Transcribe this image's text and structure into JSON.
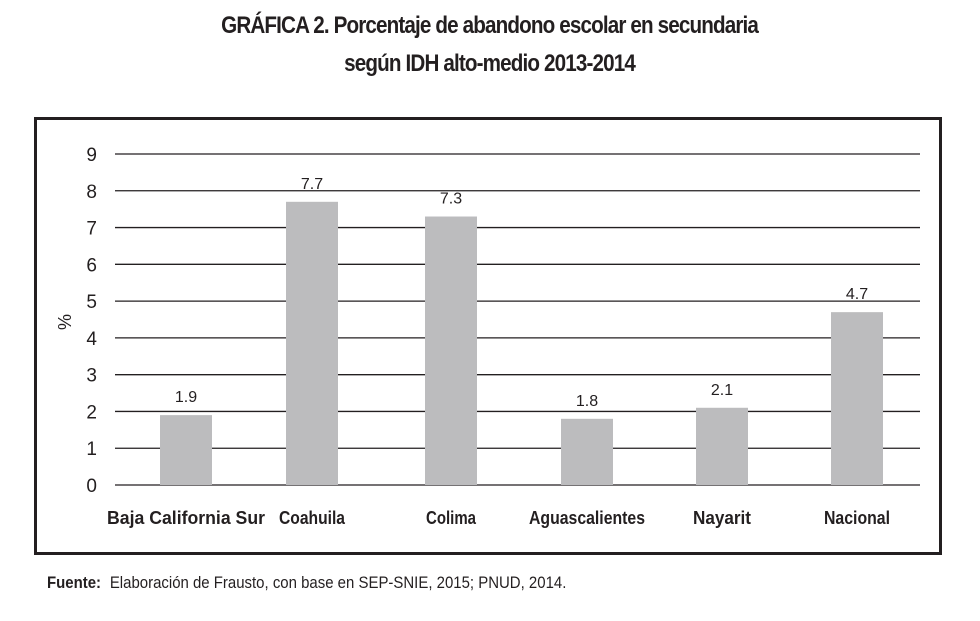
{
  "title_line1": "GRÁFICA 2.   Porcentaje de abandono escolar en secundaria",
  "title_line2": "según IDH alto-medio 2013-2014",
  "footer": {
    "label": "Fuente:",
    "text": "Elaboración de Frausto, con base en SEP-SNIE, 2015; PNUD, 2014."
  },
  "chart_data": {
    "type": "bar",
    "title": "GRÁFICA 2. Porcentaje de abandono escolar en secundaria según IDH alto-medio 2013-2014",
    "xlabel": "",
    "ylabel": "%",
    "ylim": [
      0,
      9
    ],
    "yticks": [
      0,
      1,
      2,
      3,
      4,
      5,
      6,
      7,
      8,
      9
    ],
    "grid": true,
    "categories": [
      "Baja California Sur",
      "Coahuila",
      "Colima",
      "Aguascalientes",
      "Nayarit",
      "Nacional"
    ],
    "values": [
      1.9,
      7.7,
      7.3,
      1.8,
      2.1,
      4.7
    ],
    "data_labels": [
      "1.9",
      "7.7",
      "7.3",
      "1.8",
      "2.1",
      "4.7"
    ],
    "bar_color": "#bcbcbe"
  }
}
